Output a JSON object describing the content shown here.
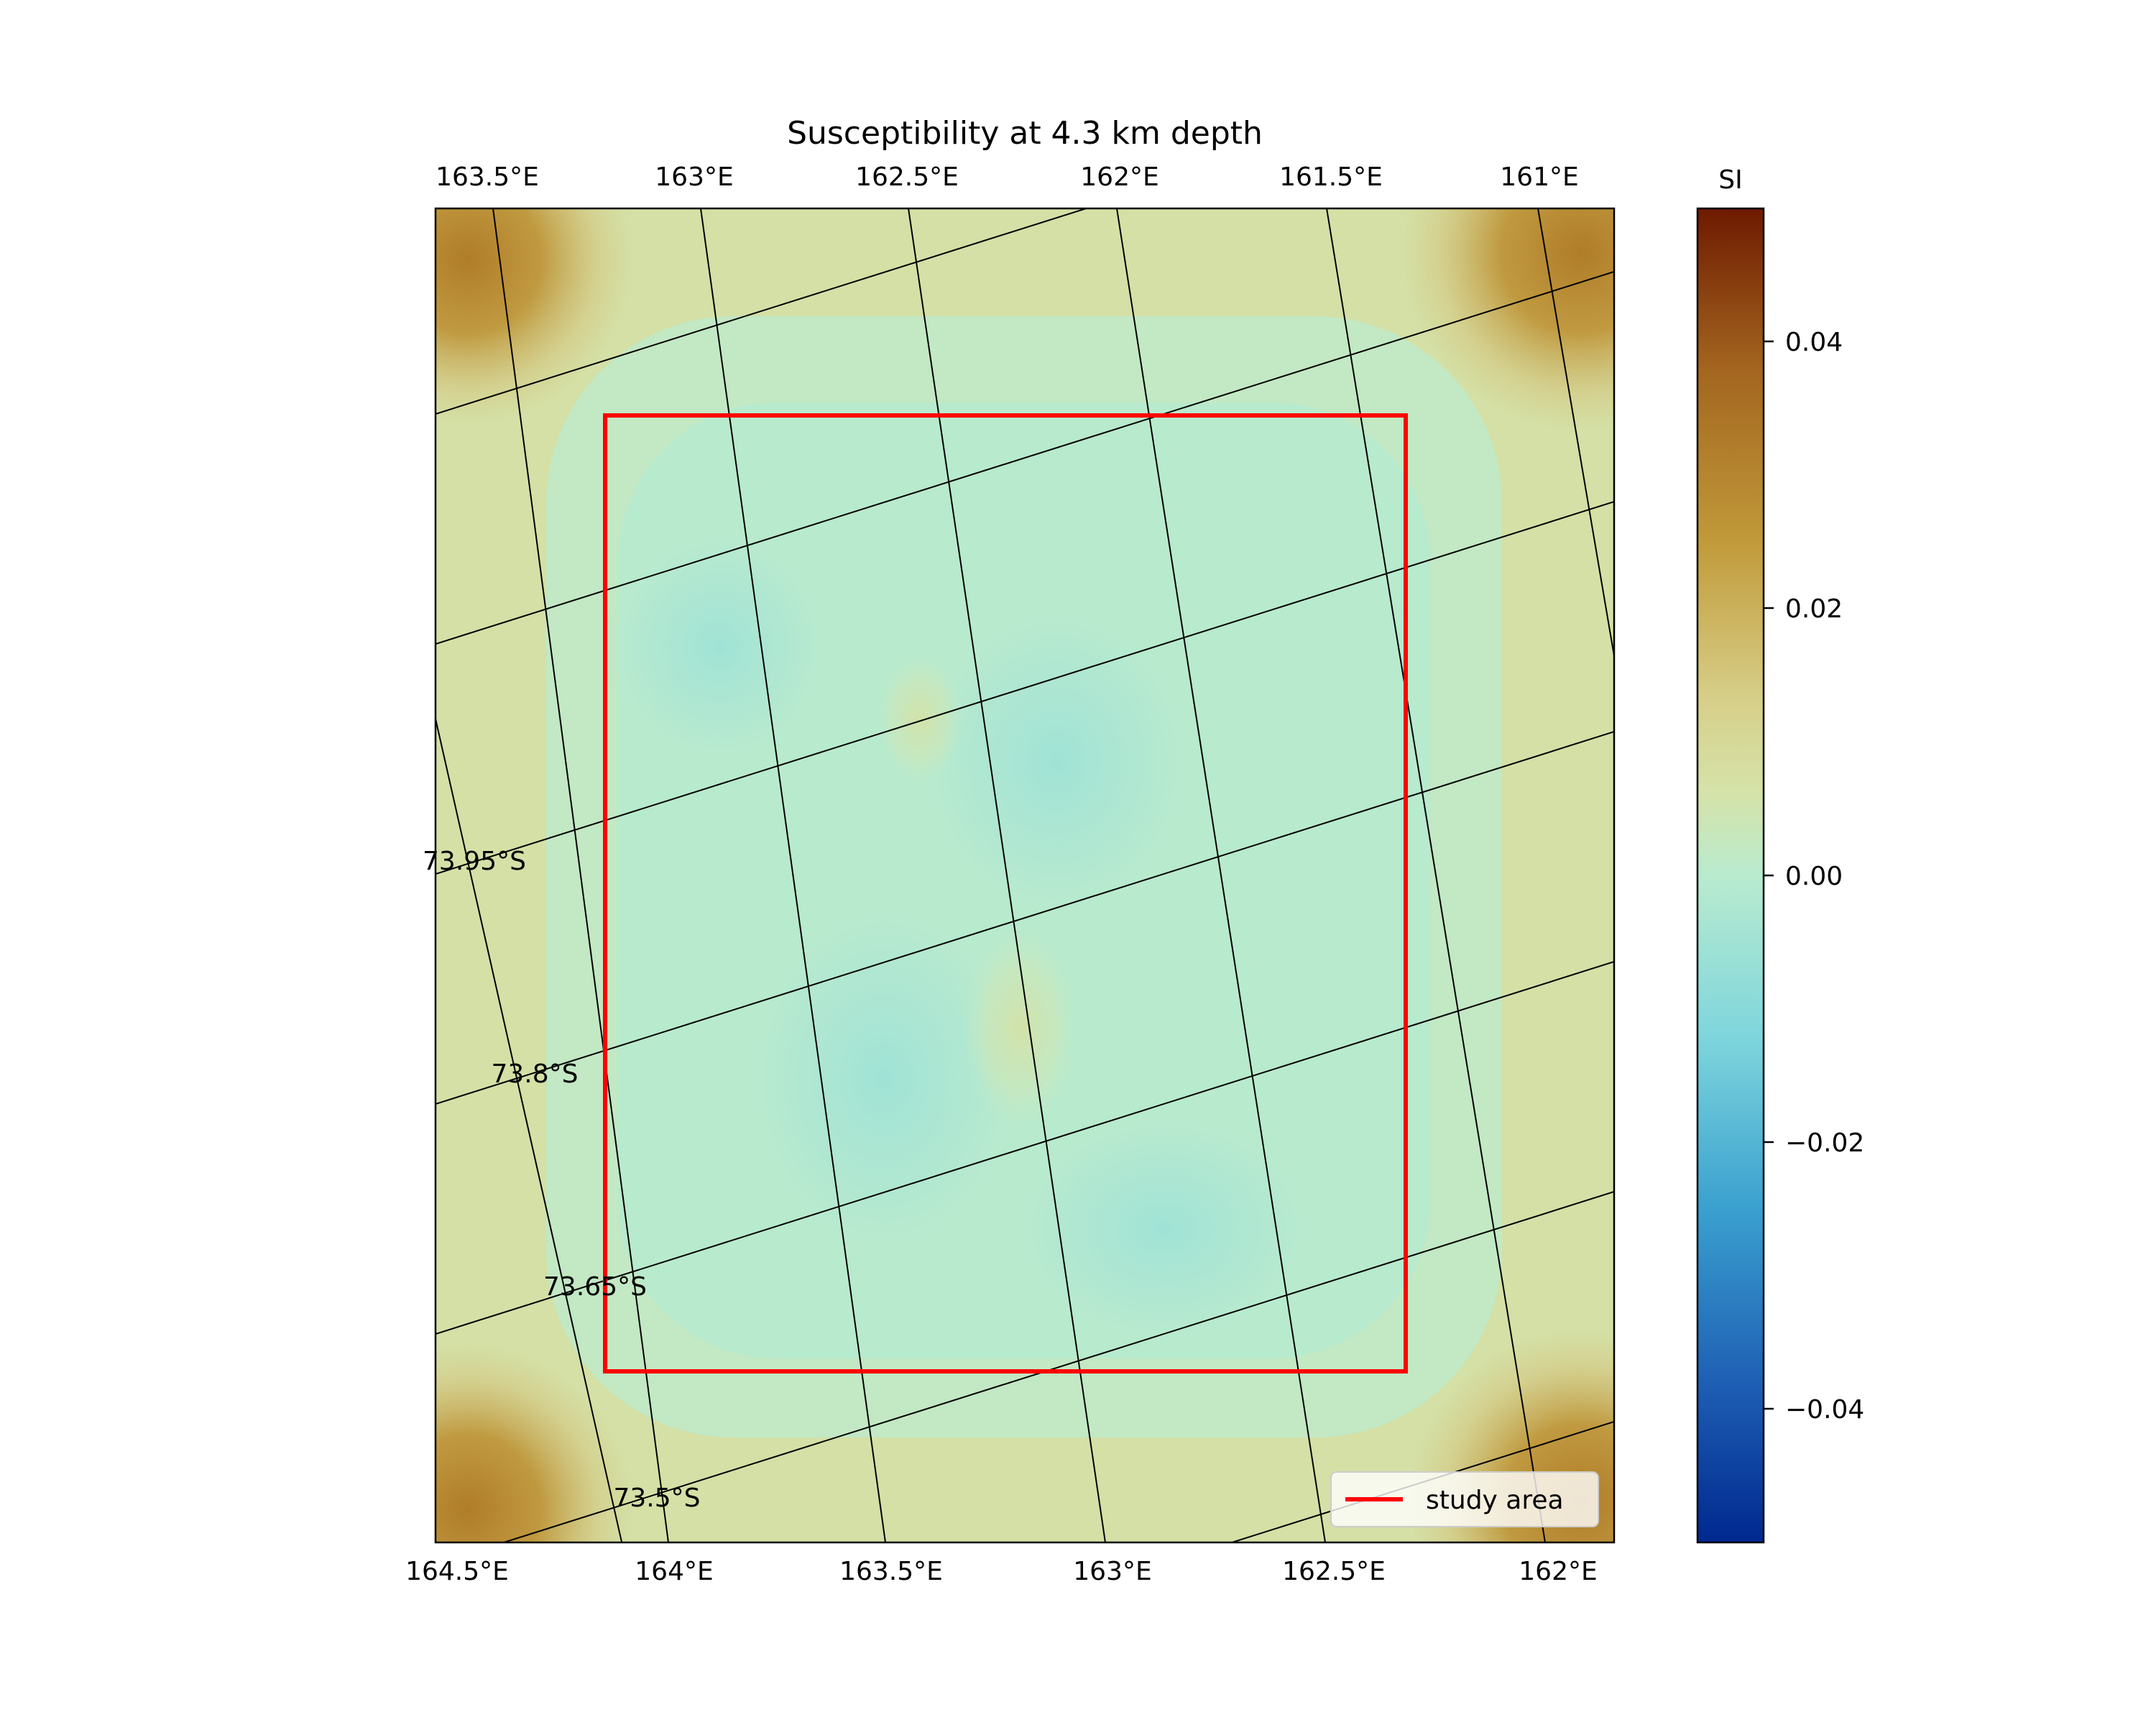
{
  "title": "Susceptibility at 4.3 km depth",
  "map": {
    "top_lon_labels": [
      "163.5°E",
      "163°E",
      "162.5°E",
      "162°E",
      "161.5°E",
      "161°E"
    ],
    "bottom_lon_labels": [
      "164.5°E",
      "164°E",
      "163.5°E",
      "163°E",
      "162.5°E",
      "162°E"
    ],
    "lat_labels": [
      "73.95°S",
      "73.8°S",
      "73.65°S",
      "73.5°S"
    ],
    "legend": {
      "label": "study area",
      "color": "#ff0000"
    }
  },
  "colorbar": {
    "label": "SI",
    "range": [
      -0.05,
      0.05
    ],
    "ticks": [
      "0.04",
      "0.02",
      "0.00",
      "−0.02",
      "−0.04"
    ],
    "colors": [
      "#00288f",
      "#1e5fb4",
      "#3aa0cf",
      "#7fd6dc",
      "#b9ebcf",
      "#d5e3aa",
      "#d7d08a",
      "#c19a3a",
      "#a3651f",
      "#6e1a00"
    ]
  },
  "chart_data": {
    "type": "heatmap",
    "title": "Susceptibility at 4.3 km depth",
    "quantity": "susceptibility",
    "units": "SI",
    "depth_km": 4.3,
    "color_range": [
      -0.05,
      0.05
    ],
    "approximate_field": {
      "corners": 0.03,
      "edges": 0.008,
      "interior_min": -0.012,
      "interior_typical": -0.004
    },
    "overlay": {
      "name": "study area",
      "shape": "rectangle",
      "color": "#ff0000"
    }
  }
}
